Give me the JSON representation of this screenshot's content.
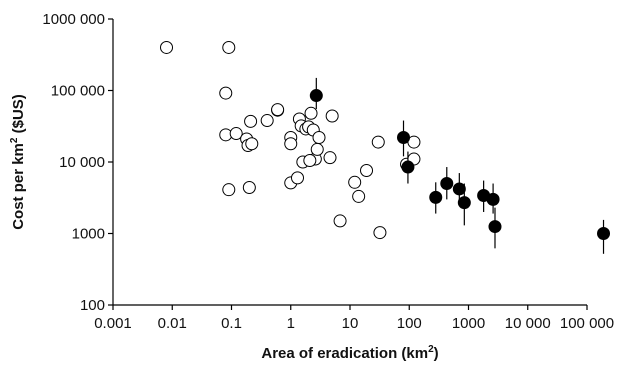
{
  "chart_data": {
    "type": "scatter",
    "title": "",
    "xscale": "log",
    "yscale": "log",
    "xlim": [
      0.001,
      100000
    ],
    "ylim": [
      100,
      1000000
    ],
    "grid": false,
    "legend": "none",
    "xlabel": {
      "main": "Area of eradication (km",
      "sup": "2",
      "end": ")"
    },
    "ylabel": {
      "main": "Cost per km",
      "sup": "2",
      "end": " ($US)"
    },
    "x_ticks": [
      {
        "value": 0.001,
        "label": "0.001"
      },
      {
        "value": 0.01,
        "label": "0.01"
      },
      {
        "value": 0.1,
        "label": "0.1"
      },
      {
        "value": 1,
        "label": "1"
      },
      {
        "value": 10,
        "label": "10"
      },
      {
        "value": 100,
        "label": "100"
      },
      {
        "value": 1000,
        "label": "1000"
      },
      {
        "value": 10000,
        "label": "10 000"
      },
      {
        "value": 100000,
        "label": "100 000"
      }
    ],
    "y_ticks": [
      {
        "value": 100,
        "label": "100"
      },
      {
        "value": 1000,
        "label": "1000"
      },
      {
        "value": 10000,
        "label": "10 000"
      },
      {
        "value": 100000,
        "label": "100 000"
      },
      {
        "value": 1000000,
        "label": "1000 000"
      }
    ],
    "series": [
      {
        "marker": "open-circle",
        "points": [
          {
            "x": 0.008,
            "y": 400000
          },
          {
            "x": 0.09,
            "y": 400000
          },
          {
            "x": 0.08,
            "y": 92000
          },
          {
            "x": 0.08,
            "y": 24000
          },
          {
            "x": 0.09,
            "y": 4100
          },
          {
            "x": 0.12,
            "y": 25000
          },
          {
            "x": 0.18,
            "y": 21000
          },
          {
            "x": 0.19,
            "y": 17000
          },
          {
            "x": 0.22,
            "y": 18000
          },
          {
            "x": 0.21,
            "y": 37000
          },
          {
            "x": 0.2,
            "y": 4400
          },
          {
            "x": 0.4,
            "y": 38000
          },
          {
            "x": 0.6,
            "y": 53000
          },
          {
            "x": 0.6,
            "y": 54000
          },
          {
            "x": 1.0,
            "y": 22000
          },
          {
            "x": 1.0,
            "y": 18000
          },
          {
            "x": 1.0,
            "y": 5100
          },
          {
            "x": 1.3,
            "y": 6000
          },
          {
            "x": 1.4,
            "y": 40000
          },
          {
            "x": 1.5,
            "y": 32000
          },
          {
            "x": 1.6,
            "y": 10000
          },
          {
            "x": 1.8,
            "y": 29000
          },
          {
            "x": 2.0,
            "y": 31000
          },
          {
            "x": 2.2,
            "y": 48000
          },
          {
            "x": 2.4,
            "y": 28000
          },
          {
            "x": 2.6,
            "y": 11000
          },
          {
            "x": 2.1,
            "y": 10500
          },
          {
            "x": 2.8,
            "y": 15000
          },
          {
            "x": 3.0,
            "y": 22000
          },
          {
            "x": 4.6,
            "y": 11500
          },
          {
            "x": 5.0,
            "y": 44000
          },
          {
            "x": 6.8,
            "y": 1500
          },
          {
            "x": 12,
            "y": 5200
          },
          {
            "x": 14,
            "y": 3300
          },
          {
            "x": 19,
            "y": 7600
          },
          {
            "x": 30,
            "y": 19000
          },
          {
            "x": 32,
            "y": 1030
          },
          {
            "x": 90,
            "y": 9300
          },
          {
            "x": 120,
            "y": 19000
          },
          {
            "x": 120,
            "y": 11000
          }
        ]
      },
      {
        "marker": "filled-circle-with-error-bars",
        "points": [
          {
            "x": 2.7,
            "y": 85000,
            "ylow": 55000,
            "yhigh": 150000
          },
          {
            "x": 80,
            "y": 22000,
            "ylow": 12000,
            "yhigh": 38000
          },
          {
            "x": 95,
            "y": 8500,
            "ylow": 5000,
            "yhigh": 14000
          },
          {
            "x": 280,
            "y": 3200,
            "ylow": 1900,
            "yhigh": 5200
          },
          {
            "x": 430,
            "y": 5000,
            "ylow": 3000,
            "yhigh": 8500
          },
          {
            "x": 700,
            "y": 4200,
            "ylow": 2500,
            "yhigh": 7000
          },
          {
            "x": 850,
            "y": 2700,
            "ylow": 1300,
            "yhigh": 5000
          },
          {
            "x": 1800,
            "y": 3400,
            "ylow": 2000,
            "yhigh": 5500
          },
          {
            "x": 2600,
            "y": 3000,
            "ylow": 1900,
            "yhigh": 5000
          },
          {
            "x": 2800,
            "y": 1250,
            "ylow": 620,
            "yhigh": 2300
          },
          {
            "x": 190000,
            "y": 1000,
            "ylow": 520,
            "yhigh": 1550
          }
        ]
      }
    ]
  }
}
